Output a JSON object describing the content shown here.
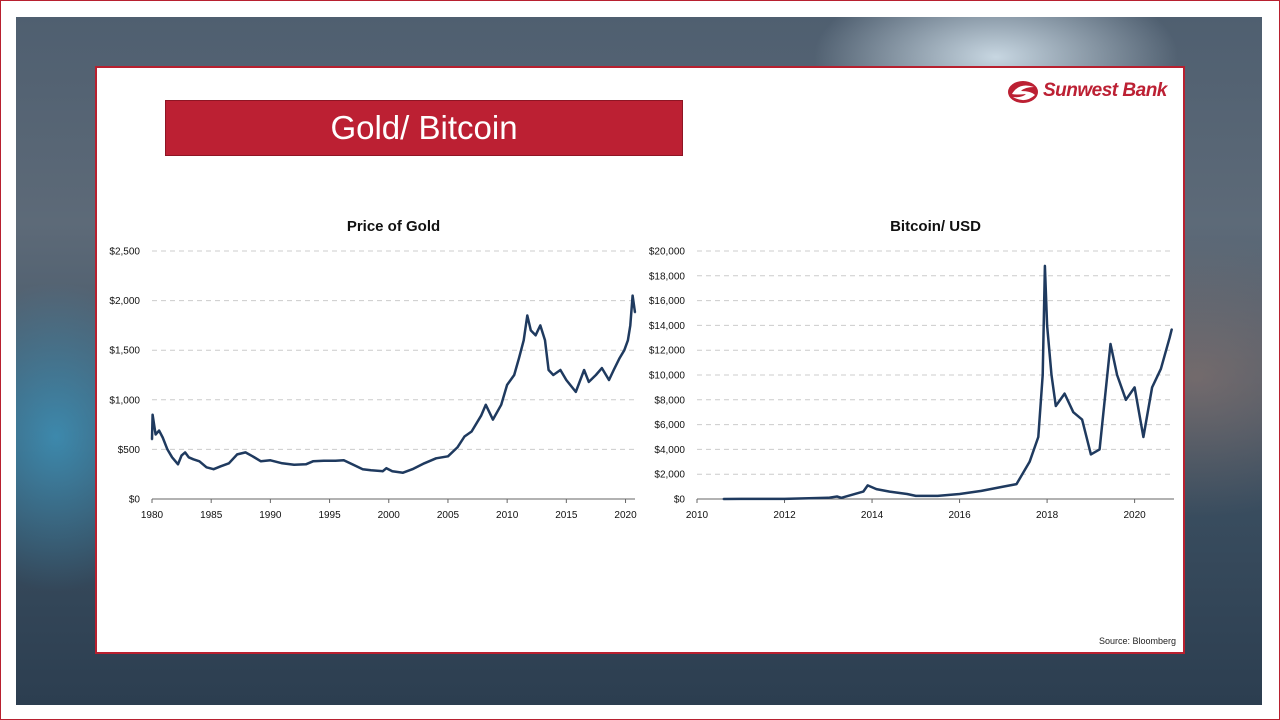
{
  "slide": {
    "title": "Gold/ Bitcoin",
    "logo_text": "Sunwest Bank",
    "source": "Source: Bloomberg"
  },
  "colors": {
    "accent": "#bc2033",
    "line": "#1f3a5f",
    "grid": "#cccccc"
  },
  "chart_data": [
    {
      "type": "line",
      "title": "Price of Gold",
      "xlabel": "",
      "ylabel": "",
      "xlim": [
        1980,
        2020.8
      ],
      "ylim": [
        0,
        2500
      ],
      "grid": true,
      "xticks": [
        1980,
        1985,
        1990,
        1995,
        2000,
        2005,
        2010,
        2015,
        2020
      ],
      "xtick_labels": [
        "1980",
        "1985",
        "1990",
        "1995",
        "2000",
        "2005",
        "2010",
        "2015",
        "2020"
      ],
      "yticks": [
        0,
        500,
        1000,
        1500,
        2000,
        2500
      ],
      "ytick_labels": [
        "$0",
        "$500",
        "$1,000",
        "$1,500",
        "$2,000",
        "$2,500"
      ],
      "series": [
        {
          "x": [
            1980,
            1980.05,
            1980.3,
            1980.6,
            1980.9,
            1981.3,
            1981.7,
            1982.2,
            1982.5,
            1982.8,
            1983.1,
            1983.5,
            1984,
            1984.6,
            1985.2,
            1985.8,
            1986.5,
            1987.2,
            1987.9,
            1988.5,
            1989.2,
            1990,
            1991,
            1992,
            1993,
            1993.6,
            1994.5,
            1995.5,
            1996.2,
            1997,
            1997.8,
            1998.5,
            1999.5,
            1999.8,
            2000.3,
            2001.2,
            2002,
            2003,
            2004,
            2005,
            2005.8,
            2006.4,
            2007,
            2007.8,
            2008.2,
            2008.8,
            2009.5,
            2010,
            2010.6,
            2011,
            2011.4,
            2011.7,
            2012,
            2012.4,
            2012.8,
            2013.2,
            2013.5,
            2013.9,
            2014.5,
            2015,
            2015.8,
            2016.5,
            2016.9,
            2017.5,
            2018,
            2018.6,
            2019,
            2019.5,
            2019.9,
            2020.2,
            2020.4,
            2020.6,
            2020.8
          ],
          "y": [
            600,
            850,
            650,
            690,
            620,
            500,
            420,
            350,
            440,
            470,
            420,
            400,
            380,
            320,
            300,
            330,
            360,
            450,
            470,
            430,
            380,
            390,
            360,
            345,
            350,
            380,
            385,
            385,
            390,
            345,
            300,
            290,
            280,
            310,
            280,
            265,
            300,
            360,
            410,
            430,
            520,
            630,
            680,
            840,
            950,
            800,
            950,
            1150,
            1250,
            1420,
            1600,
            1850,
            1700,
            1650,
            1750,
            1600,
            1300,
            1250,
            1300,
            1200,
            1080,
            1300,
            1180,
            1250,
            1320,
            1200,
            1300,
            1420,
            1500,
            1600,
            1750,
            2050,
            1880
          ]
        }
      ]
    },
    {
      "type": "line",
      "title": "Bitcoin/ USD",
      "xlabel": "",
      "ylabel": "",
      "xlim": [
        2010,
        2020.9
      ],
      "ylim": [
        0,
        20000
      ],
      "grid": true,
      "xticks": [
        2010,
        2012,
        2014,
        2016,
        2018,
        2020
      ],
      "xtick_labels": [
        "2010",
        "2012",
        "2014",
        "2016",
        "2018",
        "2020"
      ],
      "yticks": [
        0,
        2000,
        4000,
        6000,
        8000,
        10000,
        12000,
        14000,
        16000,
        18000,
        20000
      ],
      "ytick_labels": [
        "$0",
        "$2,000",
        "$4,000",
        "$6,000",
        "$8,000",
        "$10,000",
        "$12,000",
        "$14,000",
        "$16,000",
        "$18,000",
        "$20,000"
      ],
      "series": [
        {
          "x": [
            2010.6,
            2011,
            2012,
            2013,
            2013.2,
            2013.3,
            2013.8,
            2013.9,
            2014.1,
            2014.4,
            2014.8,
            2015,
            2015.5,
            2016,
            2016.5,
            2017,
            2017.3,
            2017.6,
            2017.8,
            2017.9,
            2017.95,
            2018,
            2018.1,
            2018.2,
            2018.4,
            2018.6,
            2018.8,
            2018.9,
            2019,
            2019.2,
            2019.45,
            2019.6,
            2019.8,
            2020,
            2020.2,
            2020.4,
            2020.6,
            2020.8,
            2020.85
          ],
          "y": [
            0,
            10,
            10,
            100,
            200,
            100,
            600,
            1100,
            800,
            600,
            400,
            250,
            250,
            400,
            650,
            1000,
            1200,
            3000,
            5000,
            10000,
            18800,
            14000,
            10000,
            7500,
            8500,
            7000,
            6400,
            5000,
            3600,
            4000,
            12500,
            10000,
            8000,
            9000,
            5000,
            9000,
            10500,
            13000,
            13700
          ]
        }
      ]
    }
  ]
}
